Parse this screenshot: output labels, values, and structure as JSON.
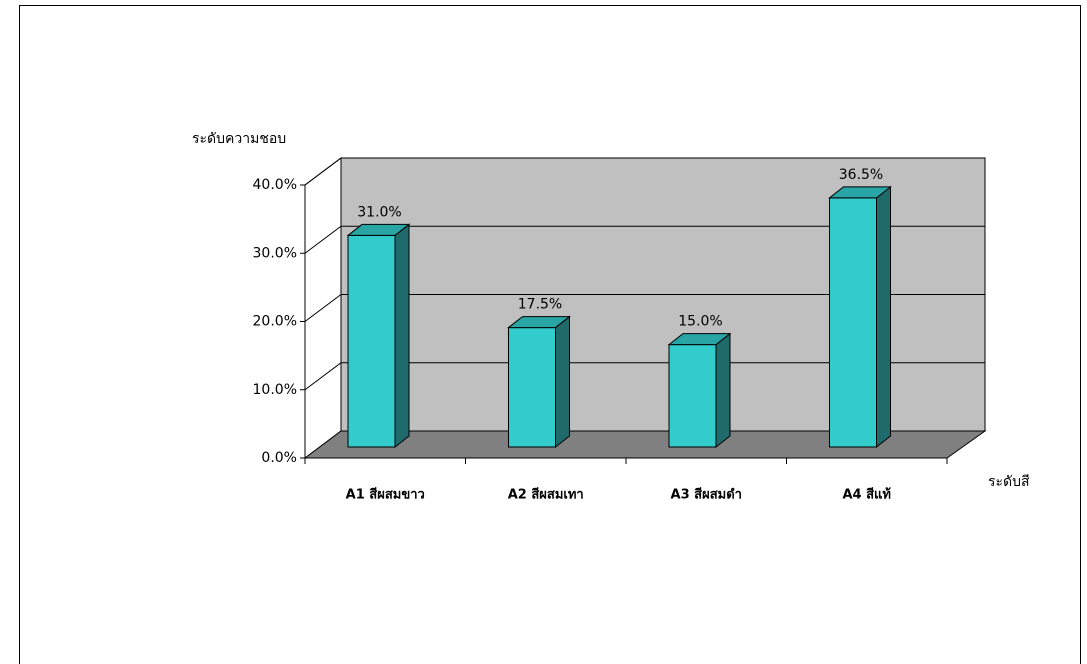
{
  "chart_data": {
    "type": "bar3d",
    "y_label": "ระดับความชอบ",
    "x_label": "ระดับสี",
    "categories": [
      "A1 สีผสมขาว",
      "A2 สีผสมเทา",
      "A3 สีผสมดำ",
      "A4 สีแท้"
    ],
    "values": [
      31.0,
      17.5,
      15.0,
      36.5
    ],
    "value_labels": [
      "31.0%",
      "17.5%",
      "15.0%",
      "36.5%"
    ],
    "color": "#33cccc",
    "ylim": [
      0,
      40
    ],
    "yticks": [
      {
        "value": 0,
        "label": "0.0%"
      },
      {
        "value": 10,
        "label": "10.0%"
      },
      {
        "value": 20,
        "label": "20.0%"
      },
      {
        "value": 30,
        "label": "30.0%"
      },
      {
        "value": 40,
        "label": "40.0%"
      }
    ],
    "grid": true
  }
}
